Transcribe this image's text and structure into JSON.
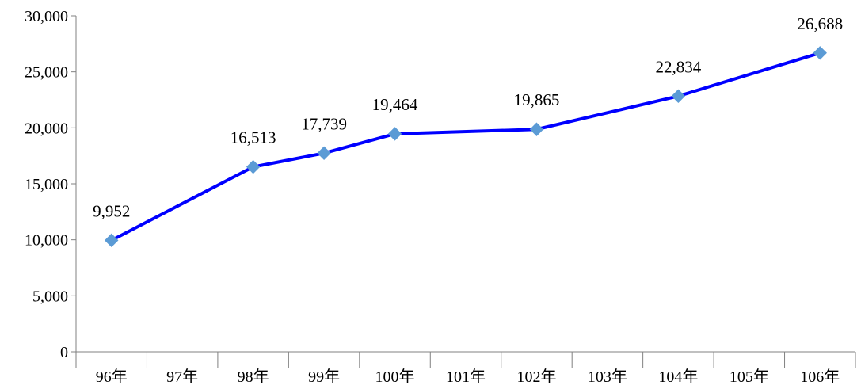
{
  "chart_data": {
    "type": "line",
    "title": "",
    "xlabel": "",
    "ylabel": "",
    "categories": [
      "96年",
      "97年",
      "98年",
      "99年",
      "100年",
      "101年",
      "102年",
      "103年",
      "104年",
      "105年",
      "106年"
    ],
    "series": [
      {
        "values": [
          9952,
          null,
          16513,
          17739,
          19464,
          null,
          19865,
          null,
          22834,
          null,
          26688
        ],
        "data_labels": [
          "9,952",
          "",
          "16,513",
          "17,739",
          "19,464",
          "",
          "19,865",
          "",
          "22,834",
          "",
          "26,688"
        ]
      }
    ],
    "ylim": [
      0,
      30000
    ],
    "y_ticks": [
      0,
      5000,
      10000,
      15000,
      20000,
      25000,
      30000
    ],
    "y_tick_labels": [
      "0",
      "5,000",
      "10,000",
      "15,000",
      "20,000",
      "25,000",
      "30,000"
    ],
    "grid": false,
    "legend": "none",
    "colors": {
      "line": "#0000ff",
      "marker": "#5b9bd5",
      "axis": "#808080"
    },
    "marker": "diamond"
  }
}
